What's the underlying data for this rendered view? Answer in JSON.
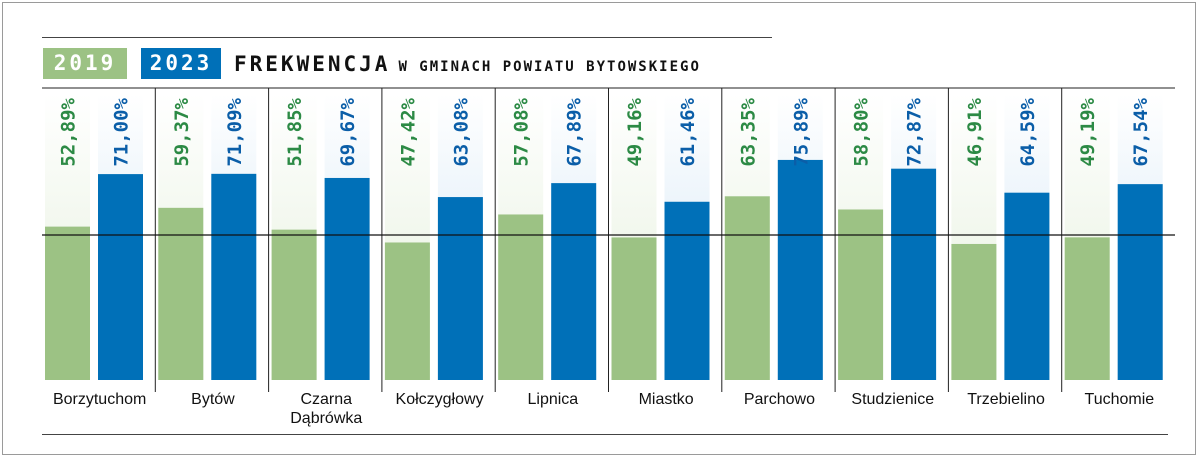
{
  "legend": {
    "y2019": "2019",
    "y2023": "2023"
  },
  "title": {
    "main": "FREKWENCJA",
    "sub": "W GMINACH POWIATU BYTOWSKIEGO"
  },
  "colors": {
    "series_2019": "#9cc284",
    "series_2023": "#0070b8",
    "label_2019": "#2c8a45",
    "label_2023": "#0b5ea8",
    "bg_2019": "#e4efdb",
    "bg_2023": "#cfe4f4"
  },
  "chart_data": {
    "type": "bar",
    "title": "FREKWENCJA W GMINACH POWIATU BYTOWSKIEGO",
    "categories": [
      [
        "Borzytuchom"
      ],
      [
        "Bytów"
      ],
      [
        "Czarna",
        "Dąbrówka"
      ],
      [
        "Kołczygłowy"
      ],
      [
        "Lipnica"
      ],
      [
        "Miastko"
      ],
      [
        "Parchowo"
      ],
      [
        "Studzienice"
      ],
      [
        "Trzebielino"
      ],
      [
        "Tuchomie"
      ]
    ],
    "series": [
      {
        "name": "2019",
        "values": [
          52.89,
          59.37,
          51.85,
          47.42,
          57.08,
          49.16,
          63.35,
          58.8,
          46.91,
          49.19
        ],
        "labels": [
          "52,89%",
          "59,37%",
          "51,85%",
          "47,42%",
          "57,08%",
          "49,16%",
          "63,35%",
          "58,80%",
          "46,91%",
          "49,19%"
        ]
      },
      {
        "name": "2023",
        "values": [
          71.0,
          71.09,
          69.67,
          63.08,
          67.89,
          61.46,
          75.89,
          72.87,
          64.59,
          67.54
        ],
        "labels": [
          "71,00%",
          "71,09%",
          "69,67%",
          "63,08%",
          "67,89%",
          "61,46%",
          "75,89%",
          "72,87%",
          "64,59%",
          "67,54%"
        ]
      }
    ],
    "ylim": [
      0,
      100
    ],
    "reference_line": 50,
    "grid": false
  }
}
